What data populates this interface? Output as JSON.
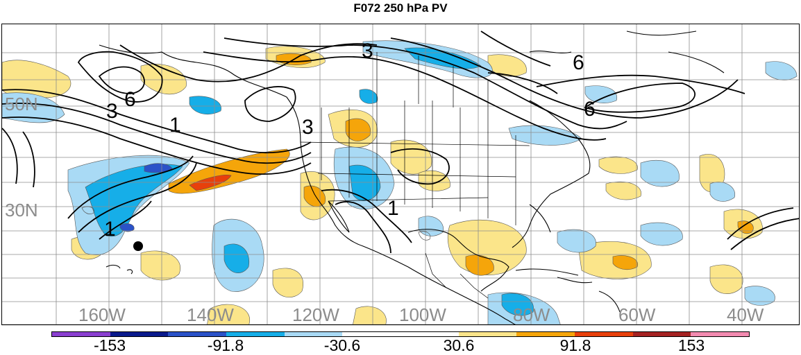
{
  "title": "F072 250 hPa PV",
  "lat_labels": [
    "50N",
    "30N"
  ],
  "lon_labels": [
    "160W",
    "140W",
    "120W",
    "100W",
    "80W",
    "60W",
    "40W"
  ],
  "contour_labels": [
    "3",
    "6",
    "1",
    "3",
    "1",
    "1",
    "3",
    "6",
    "6"
  ],
  "colorbar": {
    "labels": [
      "-153",
      "-91.8",
      "-30.6",
      "30.6",
      "91.8",
      "153"
    ],
    "colors": [
      "#8a3fd0",
      "#0a1a8c",
      "#2b52c8",
      "#16aee8",
      "#a9daf5",
      "#ffffff",
      "#ffffff",
      "#fbe58a",
      "#f5a50a",
      "#e8400b",
      "#a52222",
      "#f28ab0"
    ]
  },
  "colors": {
    "positive_light": "#fbe58a",
    "positive_mid": "#f5a50a",
    "positive_strong": "#e8400b",
    "negative_light": "#a9daf5",
    "negative_mid": "#16aee8",
    "negative_strong": "#2b52c8"
  }
}
